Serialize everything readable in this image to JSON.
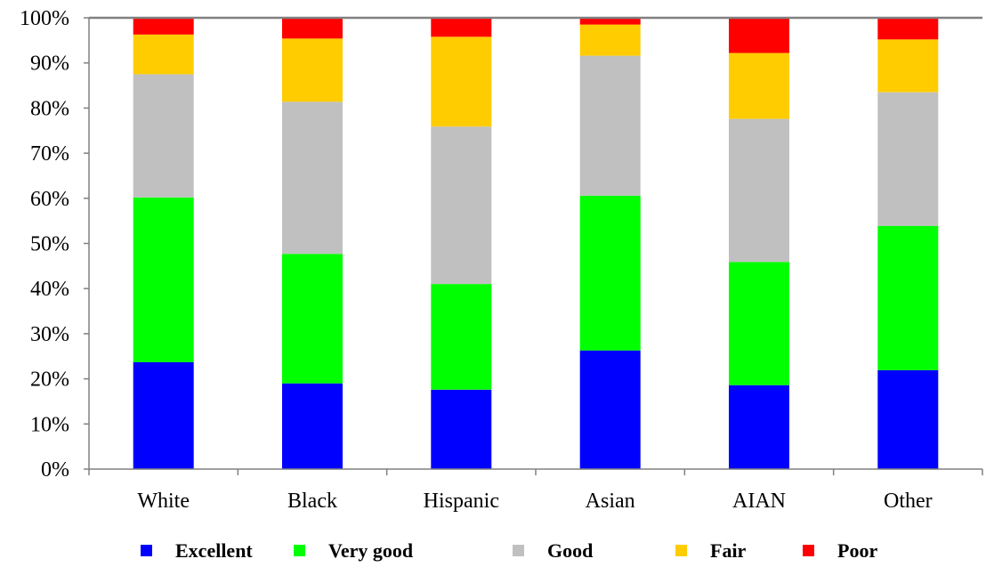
{
  "chart_data": {
    "type": "bar",
    "stacked": true,
    "percent": true,
    "categories": [
      "White",
      "Black",
      "Hispanic",
      "Asian",
      "AIAN",
      "Other"
    ],
    "series": [
      {
        "name": "Excellent",
        "color": "#0000FF",
        "values": [
          23.7,
          19.0,
          17.6,
          26.3,
          18.6,
          21.9
        ]
      },
      {
        "name": "Very good",
        "color": "#00FF00",
        "values": [
          36.5,
          28.7,
          23.4,
          34.3,
          27.3,
          32.0
        ]
      },
      {
        "name": "Good",
        "color": "#C0C0C0",
        "values": [
          27.3,
          33.7,
          34.9,
          31.0,
          31.7,
          29.6
        ]
      },
      {
        "name": "Fair",
        "color": "#FFCC00",
        "values": [
          8.8,
          14.0,
          19.9,
          6.9,
          14.6,
          11.7
        ]
      },
      {
        "name": "Poor",
        "color": "#FF0000",
        "values": [
          3.7,
          4.6,
          4.2,
          1.5,
          7.8,
          4.8
        ]
      }
    ],
    "ylim": [
      0,
      100
    ],
    "yticks": [
      "0%",
      "10%",
      "20%",
      "30%",
      "40%",
      "50%",
      "60%",
      "70%",
      "80%",
      "90%",
      "100%"
    ],
    "legend_position": "bottom",
    "grid": false
  }
}
